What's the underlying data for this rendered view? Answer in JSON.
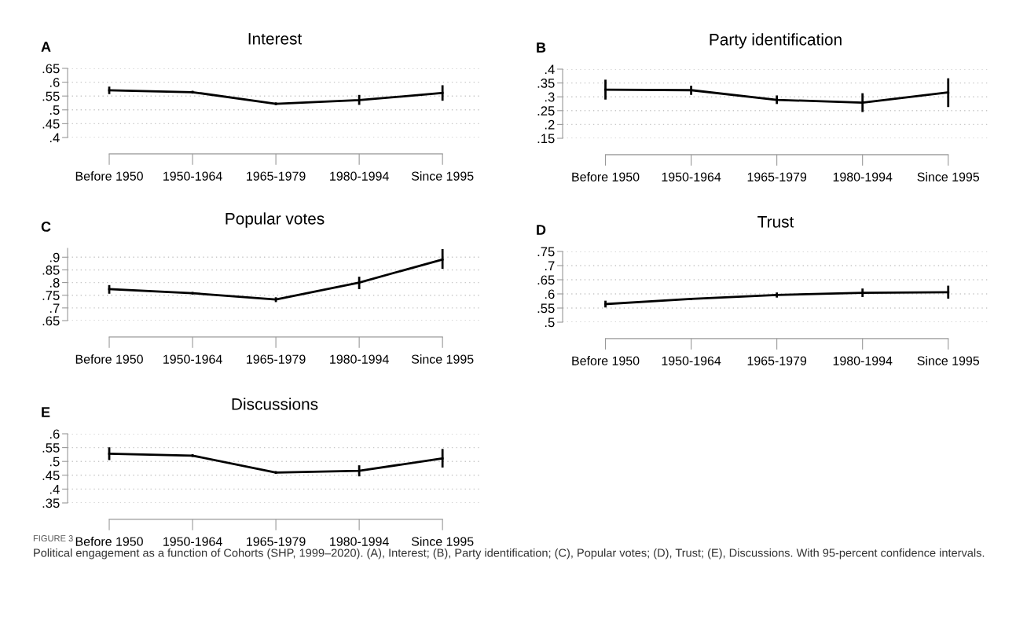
{
  "chart_data": [
    {
      "type": "line",
      "title": "Interest",
      "annotations": [
        "A"
      ],
      "categories": [
        "Before 1950",
        "1950-1964",
        "1965-1979",
        "1980-1994",
        "Since 1995"
      ],
      "color": "#000000",
      "values": [
        0.571,
        0.564,
        0.522,
        0.535,
        0.561
      ],
      "errors": [
        [
          0.557,
          0.584
        ],
        [
          0.559,
          0.569
        ],
        [
          0.517,
          0.527
        ],
        [
          0.518,
          0.554
        ],
        [
          0.533,
          0.589
        ]
      ],
      "ylim": [
        0.4,
        0.65
      ],
      "yticks": [
        {
          "value": 0.4,
          "label": ".4"
        },
        {
          "value": 0.45,
          "label": ".45"
        },
        {
          "value": 0.5,
          "label": ".5"
        },
        {
          "value": 0.55,
          "label": ".55"
        },
        {
          "value": 0.6,
          "label": ".6"
        },
        {
          "value": 0.65,
          "label": ".65"
        }
      ],
      "grid": "y",
      "marker": "none"
    },
    {
      "type": "line",
      "title": "Party identification",
      "annotations": [
        "B"
      ],
      "categories": [
        "Before 1950",
        "1950-1964",
        "1965-1979",
        "1980-1994",
        "Since 1995"
      ],
      "color": "#000000",
      "values": [
        0.326,
        0.324,
        0.289,
        0.279,
        0.316
      ],
      "errors": [
        [
          0.29,
          0.362
        ],
        [
          0.307,
          0.34
        ],
        [
          0.274,
          0.305
        ],
        [
          0.245,
          0.313
        ],
        [
          0.263,
          0.367
        ]
      ],
      "ylim": [
        0.15,
        0.4
      ],
      "yticks": [
        {
          "value": 0.15,
          "label": ".15"
        },
        {
          "value": 0.2,
          "label": ".2"
        },
        {
          "value": 0.25,
          "label": ".25"
        },
        {
          "value": 0.3,
          "label": ".3"
        },
        {
          "value": 0.35,
          "label": ".35"
        },
        {
          "value": 0.4,
          "label": ".4"
        }
      ],
      "grid": "y",
      "marker": "none"
    },
    {
      "type": "line",
      "title": "Popular votes",
      "annotations": [
        "C"
      ],
      "categories": [
        "Before 1950",
        "1950-1964",
        "1965-1979",
        "1980-1994",
        "Since 1995"
      ],
      "color": "#000000",
      "values": [
        0.774,
        0.758,
        0.733,
        0.8,
        0.891
      ],
      "errors": [
        [
          0.756,
          0.79
        ],
        [
          0.753,
          0.763
        ],
        [
          0.723,
          0.742
        ],
        [
          0.774,
          0.823
        ],
        [
          0.854,
          0.932
        ]
      ],
      "ylim": [
        0.65,
        0.935
      ],
      "yticks": [
        {
          "value": 0.65,
          "label": ".65"
        },
        {
          "value": 0.7,
          "label": ".7"
        },
        {
          "value": 0.75,
          "label": ".75"
        },
        {
          "value": 0.8,
          "label": ".8"
        },
        {
          "value": 0.85,
          "label": ".85"
        },
        {
          "value": 0.9,
          "label": ".9"
        }
      ],
      "grid": "y",
      "marker": "none"
    },
    {
      "type": "line",
      "title": "Trust",
      "annotations": [
        "D"
      ],
      "categories": [
        "Before 1950",
        "1950-1964",
        "1965-1979",
        "1980-1994",
        "Since 1995"
      ],
      "color": "#000000",
      "values": [
        0.564,
        0.582,
        0.596,
        0.604,
        0.606
      ],
      "errors": [
        [
          0.552,
          0.576
        ],
        [
          0.578,
          0.586
        ],
        [
          0.587,
          0.605
        ],
        [
          0.589,
          0.619
        ],
        [
          0.583,
          0.629
        ]
      ],
      "ylim": [
        0.5,
        0.75
      ],
      "yticks": [
        {
          "value": 0.5,
          "label": ".5"
        },
        {
          "value": 0.55,
          "label": ".55"
        },
        {
          "value": 0.6,
          "label": ".6"
        },
        {
          "value": 0.65,
          "label": ".65"
        },
        {
          "value": 0.7,
          "label": ".7"
        },
        {
          "value": 0.75,
          "label": ".75"
        }
      ],
      "grid": "y",
      "marker": "none"
    },
    {
      "type": "line",
      "title": "Discussions",
      "annotations": [
        "E",
        "FIGURE 3",
        "Political engagement as a function of Cohorts (SHP, 1999–2020). (A), Interest; (B), Party identification; (C), Popular votes; (D), Trust; (E), Discussions. With 95-percent confidence intervals."
      ],
      "categories": [
        "Before 1950",
        "1950-1964",
        "1965-1979",
        "1980-1994",
        "Since 1995"
      ],
      "color": "#000000",
      "values": [
        0.528,
        0.521,
        0.46,
        0.466,
        0.511
      ],
      "errors": [
        [
          0.505,
          0.551
        ],
        [
          0.516,
          0.526
        ],
        [
          0.455,
          0.465
        ],
        [
          0.446,
          0.486
        ],
        [
          0.478,
          0.545
        ]
      ],
      "ylim": [
        0.35,
        0.6
      ],
      "yticks": [
        {
          "value": 0.35,
          "label": ".35"
        },
        {
          "value": 0.4,
          "label": ".4"
        },
        {
          "value": 0.45,
          "label": ".45"
        },
        {
          "value": 0.5,
          "label": ".5"
        },
        {
          "value": 0.55,
          "label": ".55"
        },
        {
          "value": 0.6,
          "label": ".6"
        }
      ],
      "grid": "y",
      "marker": "none"
    }
  ]
}
